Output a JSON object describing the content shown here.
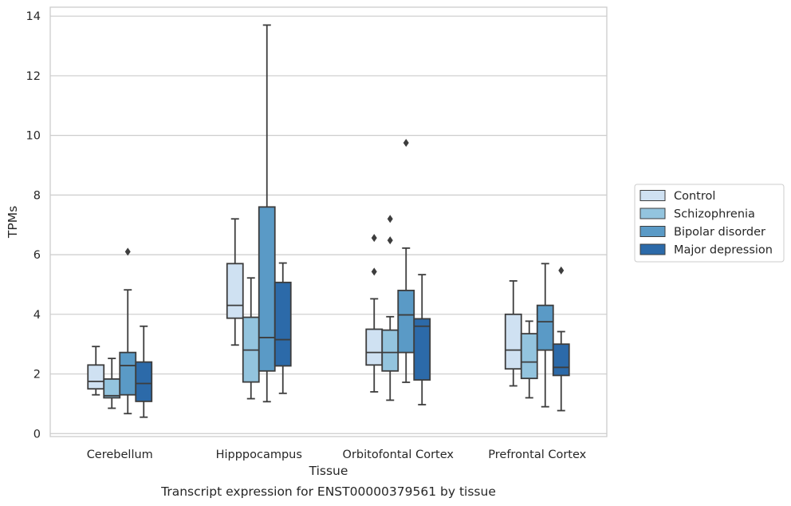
{
  "chart_data": {
    "type": "boxplot",
    "title": "",
    "caption": "Transcript expression for ENST00000379561 by tissue",
    "xlabel": "Tissue",
    "ylabel": "TPMs",
    "ylim": [
      -0.1,
      14.3
    ],
    "yticks": [
      0,
      2,
      4,
      6,
      8,
      10,
      12,
      14
    ],
    "grid": "horizontal",
    "legend_position": "right",
    "categories": [
      "Cerebellum",
      "Hipppocampus",
      "Orbitofontal Cortex",
      "Prefrontal Cortex"
    ],
    "series": [
      {
        "name": "Control",
        "color": "#cfe1f2",
        "boxes": [
          {
            "whisker_low": 1.3,
            "q1": 1.5,
            "median": 1.75,
            "q3": 2.3,
            "whisker_high": 2.92,
            "outliers": []
          },
          {
            "whisker_low": 2.97,
            "q1": 3.87,
            "median": 4.3,
            "q3": 5.7,
            "whisker_high": 7.2,
            "outliers": []
          },
          {
            "whisker_low": 1.4,
            "q1": 2.3,
            "median": 2.72,
            "q3": 3.5,
            "whisker_high": 4.52,
            "outliers": [
              5.43,
              6.56
            ]
          },
          {
            "whisker_low": 1.6,
            "q1": 2.17,
            "median": 2.8,
            "q3": 4.0,
            "whisker_high": 5.12,
            "outliers": []
          }
        ]
      },
      {
        "name": "Schizophrenia",
        "color": "#93c4de",
        "boxes": [
          {
            "whisker_low": 0.85,
            "q1": 1.2,
            "median": 1.27,
            "q3": 1.83,
            "whisker_high": 2.52,
            "outliers": []
          },
          {
            "whisker_low": 1.17,
            "q1": 1.73,
            "median": 2.8,
            "q3": 3.9,
            "whisker_high": 5.22,
            "outliers": []
          },
          {
            "whisker_low": 1.12,
            "q1": 2.1,
            "median": 2.72,
            "q3": 3.47,
            "whisker_high": 3.92,
            "outliers": [
              6.48,
              7.2
            ]
          },
          {
            "whisker_low": 1.2,
            "q1": 1.85,
            "median": 2.4,
            "q3": 3.35,
            "whisker_high": 3.77,
            "outliers": []
          }
        ]
      },
      {
        "name": "Bipolar disorder",
        "color": "#5a9ac6",
        "boxes": [
          {
            "whisker_low": 0.67,
            "q1": 1.3,
            "median": 2.28,
            "q3": 2.72,
            "whisker_high": 4.82,
            "outliers": [
              6.1
            ]
          },
          {
            "whisker_low": 1.07,
            "q1": 2.1,
            "median": 3.22,
            "q3": 7.6,
            "whisker_high": 13.7,
            "outliers": []
          },
          {
            "whisker_low": 1.72,
            "q1": 2.72,
            "median": 3.98,
            "q3": 4.8,
            "whisker_high": 6.22,
            "outliers": [
              9.75
            ]
          },
          {
            "whisker_low": 0.9,
            "q1": 2.8,
            "median": 3.75,
            "q3": 4.3,
            "whisker_high": 5.7,
            "outliers": []
          }
        ]
      },
      {
        "name": "Major depression",
        "color": "#2c6aa9",
        "boxes": [
          {
            "whisker_low": 0.55,
            "q1": 1.08,
            "median": 1.68,
            "q3": 2.4,
            "whisker_high": 3.6,
            "outliers": []
          },
          {
            "whisker_low": 1.35,
            "q1": 2.27,
            "median": 3.15,
            "q3": 5.07,
            "whisker_high": 5.72,
            "outliers": []
          },
          {
            "whisker_low": 0.97,
            "q1": 1.8,
            "median": 3.6,
            "q3": 3.85,
            "whisker_high": 5.33,
            "outliers": []
          },
          {
            "whisker_low": 0.77,
            "q1": 1.95,
            "median": 2.22,
            "q3": 3.0,
            "whisker_high": 3.42,
            "outliers": [
              5.47
            ]
          }
        ]
      }
    ]
  }
}
